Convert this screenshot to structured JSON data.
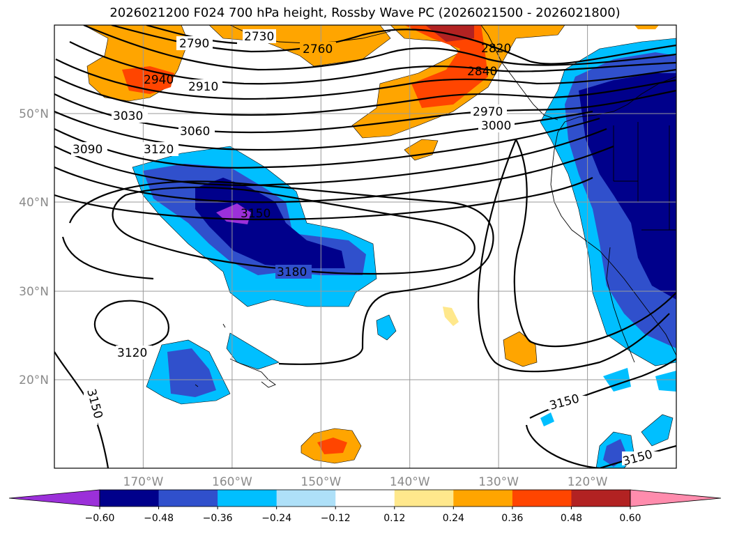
{
  "title": "2026021200 F024 700 hPa height, Rossby Wave PC (2026021500 - 2026021800)",
  "map": {
    "lon_range": [
      -180,
      -110
    ],
    "lat_range": [
      10,
      60
    ],
    "lon_ticks": [
      {
        "value": -170,
        "label": "170°W"
      },
      {
        "value": -160,
        "label": "160°W"
      },
      {
        "value": -150,
        "label": "150°W"
      },
      {
        "value": -140,
        "label": "140°W"
      },
      {
        "value": -130,
        "label": "130°W"
      },
      {
        "value": -120,
        "label": "120°W"
      }
    ],
    "lat_ticks": [
      {
        "value": 20,
        "label": "20°N"
      },
      {
        "value": 30,
        "label": "30°N"
      },
      {
        "value": 40,
        "label": "40°N"
      },
      {
        "value": 50,
        "label": "50°N"
      }
    ],
    "gridlines": true
  },
  "contour_labels": [
    "2730",
    "2790",
    "2760",
    "2820",
    "2840",
    "2940",
    "2910",
    "2970",
    "3000",
    "3030",
    "3060",
    "3090",
    "3120",
    "3150",
    "3180",
    "3120",
    "3150",
    "3150",
    "3150"
  ],
  "colorbar": {
    "tick_labels": [
      "−0.60",
      "−0.48",
      "−0.36",
      "−0.24",
      "−0.12",
      "0.12",
      "0.24",
      "0.36",
      "0.48",
      "0.60"
    ],
    "colors": [
      "#9b30d9",
      "#00008b",
      "#3050cc",
      "#00bfff",
      "#aee0f8",
      "#ffffff",
      "#ffe88c",
      "#ffa500",
      "#ff4500",
      "#b22222",
      "#ff8cad"
    ],
    "extend": "both"
  },
  "colors": {
    "contour": "#000000",
    "grid": "#9a9a9a"
  }
}
